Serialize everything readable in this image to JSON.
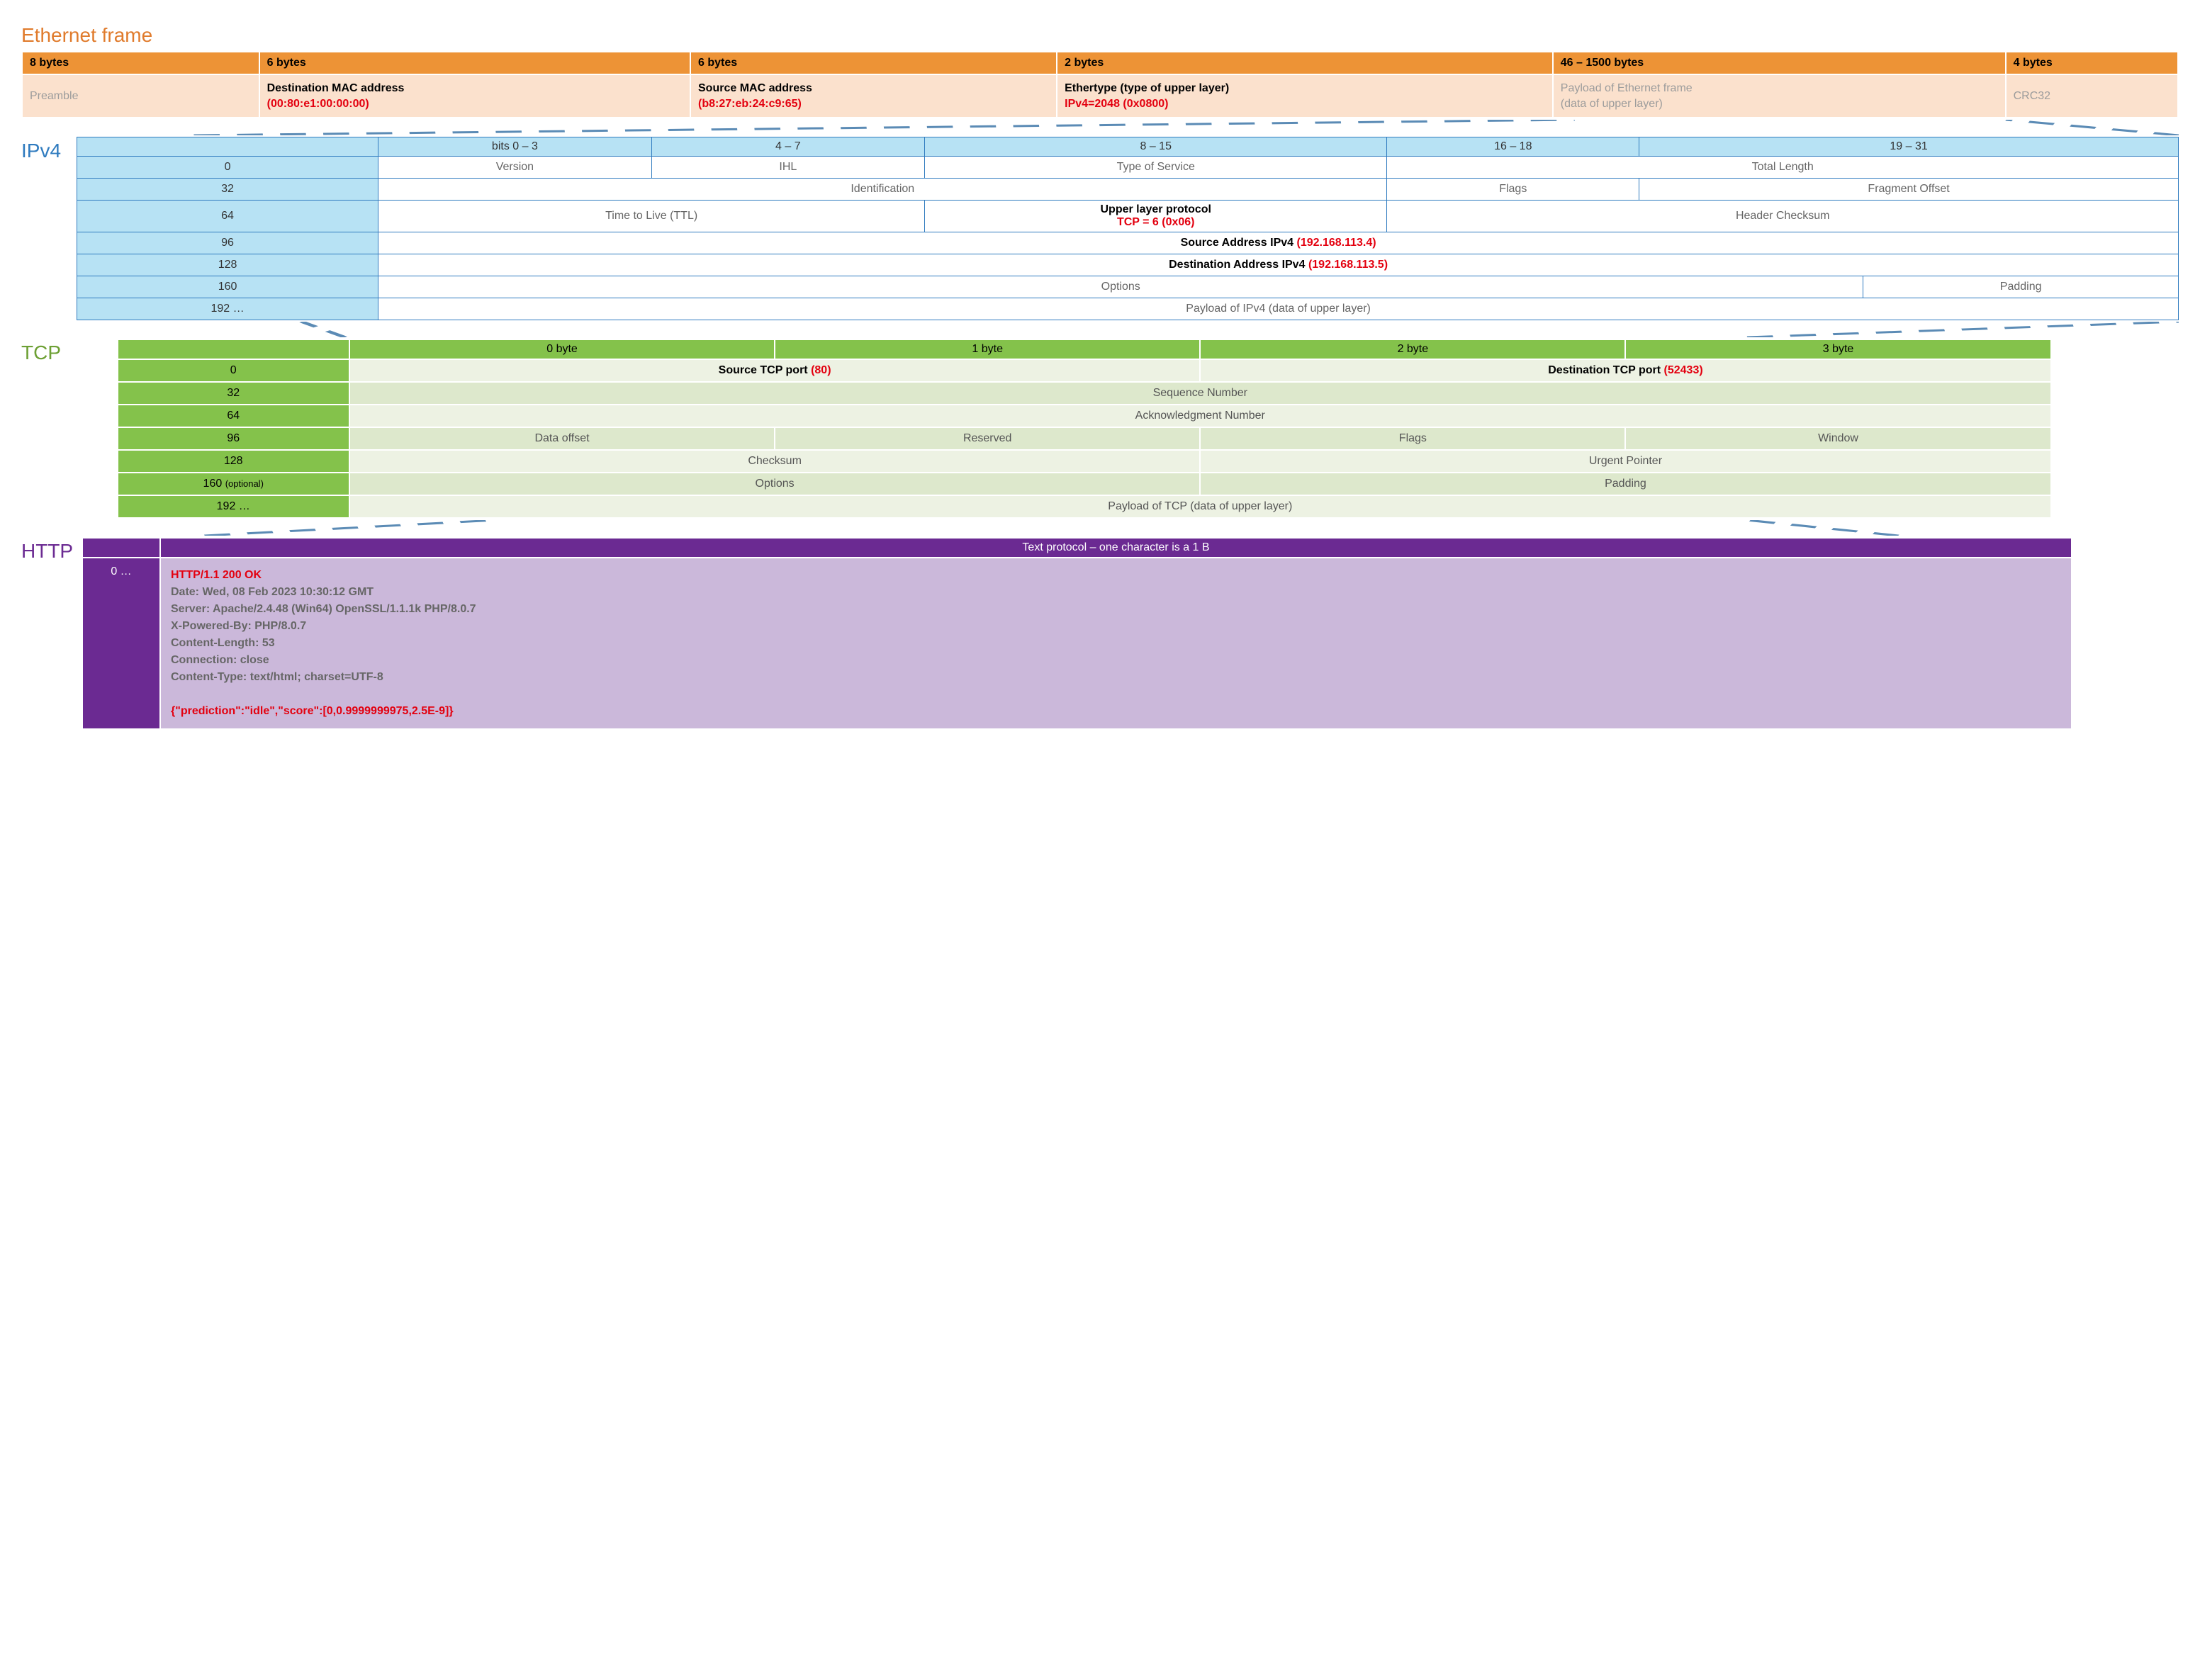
{
  "colors": {
    "ethernet_accent": "#e07b2c",
    "ethernet_header_bg": "#ed9336",
    "ethernet_body_bg": "#fbe1cd",
    "ipv4_accent": "#2f7bbf",
    "ipv4_header_bg": "#b7e2f4",
    "tcp_accent": "#6da034",
    "tcp_header_bg": "#84c24b",
    "tcp_row_a_bg": "#edf2e3",
    "tcp_row_b_bg": "#dde8cc",
    "http_accent": "#6b2a92",
    "http_body_bg": "#cbb8da",
    "highlight_red": "#e3000f",
    "muted_text": "#9c9c9c",
    "dash_line": "#5b8bb5"
  },
  "ethernet": {
    "title": "Ethernet frame",
    "sizes": [
      "8 bytes",
      "6 bytes",
      "6 bytes",
      "2 bytes",
      "46 – 1500 bytes",
      "4 bytes"
    ],
    "fields": {
      "preamble": "Preamble",
      "dest_label": "Destination MAC address",
      "dest_value": "(00:80:e1:00:00:00)",
      "src_label": "Source MAC address",
      "src_value": "(b8:27:eb:24:c9:65)",
      "ethertype_label": "Ethertype (type of upper layer)",
      "ethertype_value": "IPv4=2048 (0x0800)",
      "payload": "Payload of Ethernet frame\n(data of upper layer)",
      "crc": "CRC32"
    }
  },
  "ipv4": {
    "title": "IPv4",
    "bit_headers": [
      "bits 0 – 3",
      "4 – 7",
      "8 – 15",
      "16 – 18",
      "19 – 31"
    ],
    "offsets": [
      "0",
      "32",
      "64",
      "96",
      "128",
      "160",
      "192 …"
    ],
    "row0": {
      "version": "Version",
      "ihl": "IHL",
      "tos": "Type of Service",
      "total_length": "Total Length"
    },
    "row32": {
      "identification": "Identification",
      "flags": "Flags",
      "fragment_offset": "Fragment Offset"
    },
    "row64": {
      "ttl": "Time to Live (TTL)",
      "proto_label": "Upper layer protocol",
      "proto_value": "TCP = 6 (0x06)",
      "checksum": "Header Checksum"
    },
    "row96": {
      "label": "Source Address IPv4",
      "value": "(192.168.113.4)"
    },
    "row128": {
      "label": "Destination Address  IPv4",
      "value": "(192.168.113.5)"
    },
    "row160": {
      "options": "Options",
      "padding": "Padding"
    },
    "row192": "Payload of IPv4 (data of upper layer)"
  },
  "tcp": {
    "title": "TCP",
    "byte_headers": [
      "0 byte",
      "1 byte",
      "2 byte",
      "3 byte"
    ],
    "offsets": [
      "0",
      "32",
      "64",
      "96",
      "128",
      "160",
      "192 …"
    ],
    "offset_optional": "(optional)",
    "row0": {
      "src_label": "Source TCP port",
      "src_value": "(80)",
      "dst_label": "Destination TCP port",
      "dst_value": "(52433)"
    },
    "row32": "Sequence Number",
    "row64": "Acknowledgment Number",
    "row96": {
      "data_offset": "Data offset",
      "reserved": "Reserved",
      "flags": "Flags",
      "window": "Window"
    },
    "row128": {
      "checksum": "Checksum",
      "urgent": "Urgent Pointer"
    },
    "row160": {
      "options": "Options",
      "padding": "Padding"
    },
    "row192": "Payload of TCP (data of upper layer)"
  },
  "http": {
    "title": "HTTP",
    "header": "Text protocol – one character is a 1 B",
    "offset": "0 …",
    "lines": [
      "HTTP/1.1 200 OK",
      "Date: Wed, 08 Feb 2023 10:30:12 GMT",
      "Server: Apache/2.4.48 (Win64) OpenSSL/1.1.1k PHP/8.0.7",
      "X-Powered-By: PHP/8.0.7",
      "Content-Length: 53",
      "Connection: close",
      "Content-Type: text/html; charset=UTF-8",
      "",
      "{\"prediction\":\"idle\",\"score\":[0,0.9999999975,2.5E-9]}"
    ],
    "highlight_lines": [
      0,
      8
    ]
  }
}
